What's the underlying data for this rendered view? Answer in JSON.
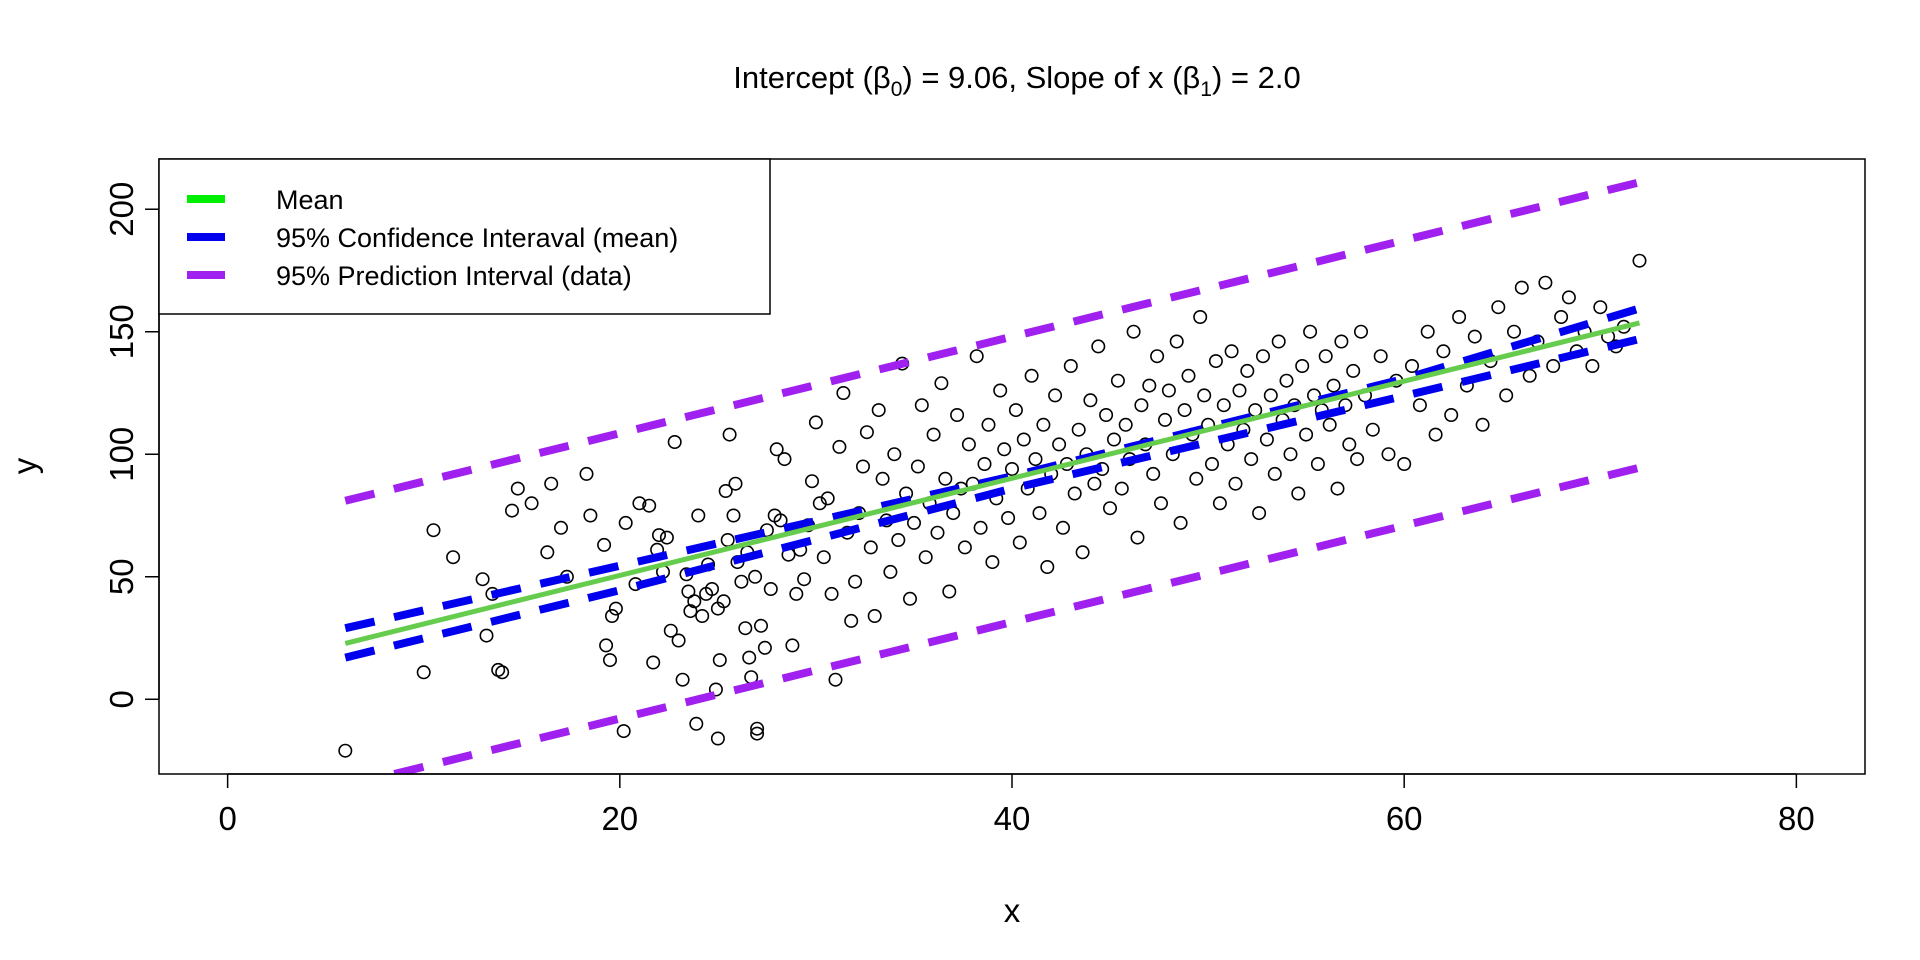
{
  "chart_data": {
    "type": "scatter",
    "title": {
      "prefix": "Intercept (",
      "beta": "β",
      "sub0": "0",
      "middle": ") = 9.06, Slope of x (",
      "sub1": "1",
      "suffix": ") = 2.0"
    },
    "xlabel": "x",
    "ylabel": "y",
    "xlim": [
      -3.5,
      83.5
    ],
    "ylim": [
      -30.5,
      220.5
    ],
    "x_ticks": [
      0,
      20,
      40,
      60,
      80
    ],
    "y_ticks": [
      0,
      50,
      100,
      150,
      200
    ],
    "x_tick_labels": [
      "0",
      "20",
      "40",
      "60",
      "80"
    ],
    "y_tick_labels": [
      "0",
      "50",
      "100",
      "150",
      "200"
    ],
    "grid": false,
    "legend_position": "top-left",
    "colors": {
      "points": "#000000",
      "mean": "#66cc4d",
      "mean_legend": "#00ee00",
      "confidence": "#0000ee",
      "prediction": "#a020f0"
    },
    "legend": [
      {
        "name": "Mean",
        "key": "mean",
        "style": "solid"
      },
      {
        "name": "95% Confidence Interaval (mean)",
        "key": "confidence",
        "style": "dashed"
      },
      {
        "name": "95% Prediction Interval (data)",
        "key": "prediction",
        "style": "dashed"
      }
    ],
    "lines": {
      "mean": {
        "x": [
          6,
          72
        ],
        "y": [
          22.8,
          153.6
        ]
      },
      "confidence_upper": {
        "x": [
          6,
          20,
          40,
          60,
          72
        ],
        "y": [
          29.0,
          54.5,
          91.0,
          130.8,
          159.5
        ]
      },
      "confidence_lower": {
        "x": [
          6,
          20,
          40,
          60,
          72
        ],
        "y": [
          17.0,
          44.5,
          86.0,
          123.8,
          147.0
        ]
      },
      "prediction_upper": {
        "x": [
          6,
          72
        ],
        "y": [
          81.0,
          211.0
        ]
      },
      "prediction_lower": {
        "x": [
          8.5,
          72
        ],
        "y": [
          -30.5,
          94.5
        ]
      }
    },
    "points": [
      [
        6.0,
        -21
      ],
      [
        10.0,
        11
      ],
      [
        10.5,
        69
      ],
      [
        11.5,
        58
      ],
      [
        13.0,
        49
      ],
      [
        13.2,
        26
      ],
      [
        13.5,
        43
      ],
      [
        13.8,
        12
      ],
      [
        14.0,
        11
      ],
      [
        14.5,
        77
      ],
      [
        14.8,
        86
      ],
      [
        15.5,
        80
      ],
      [
        16.3,
        60
      ],
      [
        16.5,
        88
      ],
      [
        17.0,
        70
      ],
      [
        17.3,
        50
      ],
      [
        18.3,
        92
      ],
      [
        18.5,
        75
      ],
      [
        19.2,
        63
      ],
      [
        19.3,
        22
      ],
      [
        19.5,
        16
      ],
      [
        19.6,
        34
      ],
      [
        19.8,
        37
      ],
      [
        20.2,
        -13
      ],
      [
        20.3,
        72
      ],
      [
        20.8,
        47
      ],
      [
        21.0,
        80
      ],
      [
        21.5,
        79
      ],
      [
        21.7,
        15
      ],
      [
        21.9,
        61
      ],
      [
        22.0,
        67
      ],
      [
        22.2,
        52
      ],
      [
        22.4,
        66
      ],
      [
        22.6,
        28
      ],
      [
        22.8,
        105
      ],
      [
        23.0,
        24
      ],
      [
        23.2,
        8
      ],
      [
        23.4,
        51
      ],
      [
        23.5,
        44
      ],
      [
        23.6,
        36
      ],
      [
        23.8,
        40
      ],
      [
        23.9,
        -10
      ],
      [
        24.0,
        75
      ],
      [
        24.2,
        34
      ],
      [
        24.4,
        43
      ],
      [
        24.5,
        55
      ],
      [
        24.7,
        45
      ],
      [
        24.9,
        4
      ],
      [
        25.0,
        37
      ],
      [
        25.0,
        -16
      ],
      [
        25.1,
        16
      ],
      [
        25.3,
        40
      ],
      [
        25.4,
        85
      ],
      [
        25.5,
        65
      ],
      [
        25.6,
        108
      ],
      [
        25.8,
        75
      ],
      [
        25.9,
        88
      ],
      [
        26.0,
        56
      ],
      [
        26.2,
        48
      ],
      [
        26.4,
        29
      ],
      [
        26.5,
        60
      ],
      [
        26.6,
        17
      ],
      [
        26.7,
        9
      ],
      [
        26.9,
        50
      ],
      [
        27.0,
        -12
      ],
      [
        27.0,
        -14
      ],
      [
        27.2,
        30
      ],
      [
        27.4,
        21
      ],
      [
        27.5,
        69
      ],
      [
        27.7,
        45
      ],
      [
        27.9,
        75
      ],
      [
        28.0,
        102
      ],
      [
        28.2,
        73
      ],
      [
        28.4,
        98
      ],
      [
        28.6,
        59
      ],
      [
        28.8,
        22
      ],
      [
        29.0,
        43
      ],
      [
        29.2,
        61
      ],
      [
        29.4,
        49
      ],
      [
        29.6,
        71
      ],
      [
        29.8,
        89
      ],
      [
        30.0,
        113
      ],
      [
        30.2,
        80
      ],
      [
        30.4,
        58
      ],
      [
        30.6,
        82
      ],
      [
        30.8,
        43
      ],
      [
        31.0,
        8
      ],
      [
        31.2,
        103
      ],
      [
        31.4,
        125
      ],
      [
        31.6,
        68
      ],
      [
        31.8,
        32
      ],
      [
        32.0,
        48
      ],
      [
        32.2,
        76
      ],
      [
        32.4,
        95
      ],
      [
        32.6,
        109
      ],
      [
        32.8,
        62
      ],
      [
        33.0,
        34
      ],
      [
        33.2,
        118
      ],
      [
        33.4,
        90
      ],
      [
        33.6,
        73
      ],
      [
        33.8,
        52
      ],
      [
        34.0,
        100
      ],
      [
        34.2,
        65
      ],
      [
        34.4,
        137
      ],
      [
        34.6,
        84
      ],
      [
        34.8,
        41
      ],
      [
        35.0,
        72
      ],
      [
        35.2,
        95
      ],
      [
        35.4,
        120
      ],
      [
        35.6,
        58
      ],
      [
        35.8,
        80
      ],
      [
        36.0,
        108
      ],
      [
        36.2,
        68
      ],
      [
        36.4,
        129
      ],
      [
        36.6,
        90
      ],
      [
        36.8,
        44
      ],
      [
        37.0,
        76
      ],
      [
        37.2,
        116
      ],
      [
        37.4,
        86
      ],
      [
        37.6,
        62
      ],
      [
        37.8,
        104
      ],
      [
        38.0,
        88
      ],
      [
        38.2,
        140
      ],
      [
        38.4,
        70
      ],
      [
        38.6,
        96
      ],
      [
        38.8,
        112
      ],
      [
        39.0,
        56
      ],
      [
        39.2,
        82
      ],
      [
        39.4,
        126
      ],
      [
        39.6,
        102
      ],
      [
        39.8,
        74
      ],
      [
        40.0,
        94
      ],
      [
        40.2,
        118
      ],
      [
        40.4,
        64
      ],
      [
        40.6,
        106
      ],
      [
        40.8,
        86
      ],
      [
        41.0,
        132
      ],
      [
        41.2,
        98
      ],
      [
        41.4,
        76
      ],
      [
        41.6,
        112
      ],
      [
        41.8,
        54
      ],
      [
        42.0,
        92
      ],
      [
        42.2,
        124
      ],
      [
        42.4,
        104
      ],
      [
        42.6,
        70
      ],
      [
        42.8,
        96
      ],
      [
        43.0,
        136
      ],
      [
        43.2,
        84
      ],
      [
        43.4,
        110
      ],
      [
        43.6,
        60
      ],
      [
        43.8,
        100
      ],
      [
        44.0,
        122
      ],
      [
        44.2,
        88
      ],
      [
        44.4,
        144
      ],
      [
        44.6,
        94
      ],
      [
        44.8,
        116
      ],
      [
        45.0,
        78
      ],
      [
        45.2,
        106
      ],
      [
        45.4,
        130
      ],
      [
        45.6,
        86
      ],
      [
        45.8,
        112
      ],
      [
        46.0,
        98
      ],
      [
        46.2,
        150
      ],
      [
        46.4,
        66
      ],
      [
        46.6,
        120
      ],
      [
        46.8,
        104
      ],
      [
        47.0,
        128
      ],
      [
        47.2,
        92
      ],
      [
        47.4,
        140
      ],
      [
        47.6,
        80
      ],
      [
        47.8,
        114
      ],
      [
        48.0,
        126
      ],
      [
        48.2,
        100
      ],
      [
        48.4,
        146
      ],
      [
        48.6,
        72
      ],
      [
        48.8,
        118
      ],
      [
        49.0,
        132
      ],
      [
        49.2,
        108
      ],
      [
        49.4,
        90
      ],
      [
        49.6,
        156
      ],
      [
        49.8,
        124
      ],
      [
        50.0,
        112
      ],
      [
        50.2,
        96
      ],
      [
        50.4,
        138
      ],
      [
        50.6,
        80
      ],
      [
        50.8,
        120
      ],
      [
        51.0,
        104
      ],
      [
        51.2,
        142
      ],
      [
        51.4,
        88
      ],
      [
        51.6,
        126
      ],
      [
        51.8,
        110
      ],
      [
        52.0,
        134
      ],
      [
        52.2,
        98
      ],
      [
        52.4,
        118
      ],
      [
        52.6,
        76
      ],
      [
        52.8,
        140
      ],
      [
        53.0,
        106
      ],
      [
        53.2,
        124
      ],
      [
        53.4,
        92
      ],
      [
        53.6,
        146
      ],
      [
        53.8,
        114
      ],
      [
        54.0,
        130
      ],
      [
        54.2,
        100
      ],
      [
        54.4,
        120
      ],
      [
        54.6,
        84
      ],
      [
        54.8,
        136
      ],
      [
        55.0,
        108
      ],
      [
        55.2,
        150
      ],
      [
        55.4,
        124
      ],
      [
        55.6,
        96
      ],
      [
        55.8,
        118
      ],
      [
        56.0,
        140
      ],
      [
        56.2,
        112
      ],
      [
        56.4,
        128
      ],
      [
        56.6,
        86
      ],
      [
        56.8,
        146
      ],
      [
        57.0,
        120
      ],
      [
        57.2,
        104
      ],
      [
        57.4,
        134
      ],
      [
        57.6,
        98
      ],
      [
        57.8,
        150
      ],
      [
        58.0,
        124
      ],
      [
        58.4,
        110
      ],
      [
        58.8,
        140
      ],
      [
        59.2,
        100
      ],
      [
        59.6,
        130
      ],
      [
        60.0,
        96
      ],
      [
        60.4,
        136
      ],
      [
        60.8,
        120
      ],
      [
        61.2,
        150
      ],
      [
        61.6,
        108
      ],
      [
        62.0,
        142
      ],
      [
        62.4,
        116
      ],
      [
        62.8,
        156
      ],
      [
        63.2,
        128
      ],
      [
        63.6,
        148
      ],
      [
        64.0,
        112
      ],
      [
        64.4,
        138
      ],
      [
        64.8,
        160
      ],
      [
        65.2,
        124
      ],
      [
        65.6,
        150
      ],
      [
        66.0,
        168
      ],
      [
        66.4,
        132
      ],
      [
        66.8,
        146
      ],
      [
        67.2,
        170
      ],
      [
        67.6,
        136
      ],
      [
        68.0,
        156
      ],
      [
        68.4,
        164
      ],
      [
        68.8,
        142
      ],
      [
        69.2,
        150
      ],
      [
        69.6,
        136
      ],
      [
        70.0,
        160
      ],
      [
        70.4,
        148
      ],
      [
        70.8,
        144
      ],
      [
        71.2,
        152
      ],
      [
        72.0,
        179
      ]
    ]
  }
}
